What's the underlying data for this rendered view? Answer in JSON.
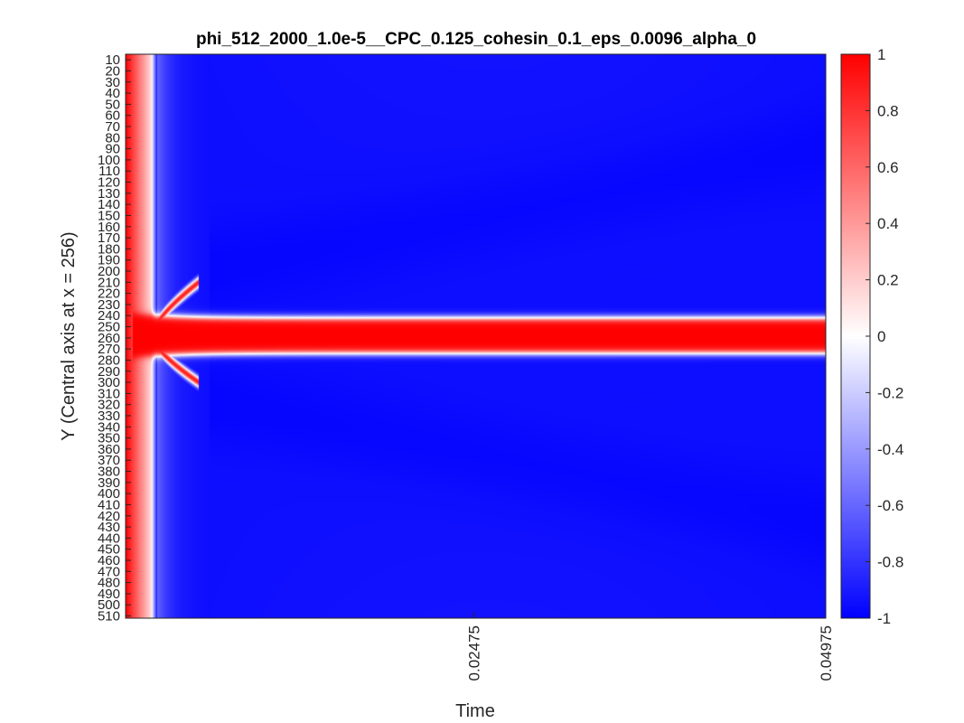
{
  "chart_data": {
    "type": "heatmap",
    "title": "phi_512_2000_1.0e-5__CPC_0.125_cohesin_0.1_eps_0.0096_alpha_0",
    "xlabel": "Time",
    "ylabel": "Y (Central axis at x = 256)",
    "xlim": [
      0,
      0.04975
    ],
    "x_ticks": [
      {
        "value": 0.02475,
        "label": "0.02475"
      },
      {
        "value": 0.04975,
        "label": "0.04975"
      }
    ],
    "ylim": [
      5,
      512
    ],
    "y_direction": "reverse",
    "y_ticks": [
      10,
      20,
      30,
      40,
      50,
      60,
      70,
      80,
      90,
      100,
      110,
      120,
      130,
      140,
      150,
      160,
      170,
      180,
      190,
      200,
      210,
      220,
      230,
      240,
      250,
      260,
      270,
      280,
      290,
      300,
      310,
      320,
      330,
      340,
      350,
      360,
      370,
      380,
      390,
      400,
      410,
      420,
      430,
      440,
      450,
      460,
      470,
      480,
      490,
      500,
      510
    ],
    "colorbar": {
      "range": [
        -1,
        1
      ],
      "ticks": [
        "1",
        "0.8",
        "0.6",
        "0.4",
        "0.2",
        "0",
        "-0.2",
        "-0.4",
        "-0.6",
        "-0.8",
        "-1"
      ],
      "colormap": [
        "#0000ff",
        "#ffffff",
        "#ff0000"
      ]
    },
    "features": {
      "band_center_y": 258,
      "band_half_width": 16,
      "early_red_until_time": 0.0018,
      "transition_until_time": 0.006,
      "side_lobes_y": [
        210,
        300
      ],
      "background_value": -0.95
    },
    "grid": false
  }
}
